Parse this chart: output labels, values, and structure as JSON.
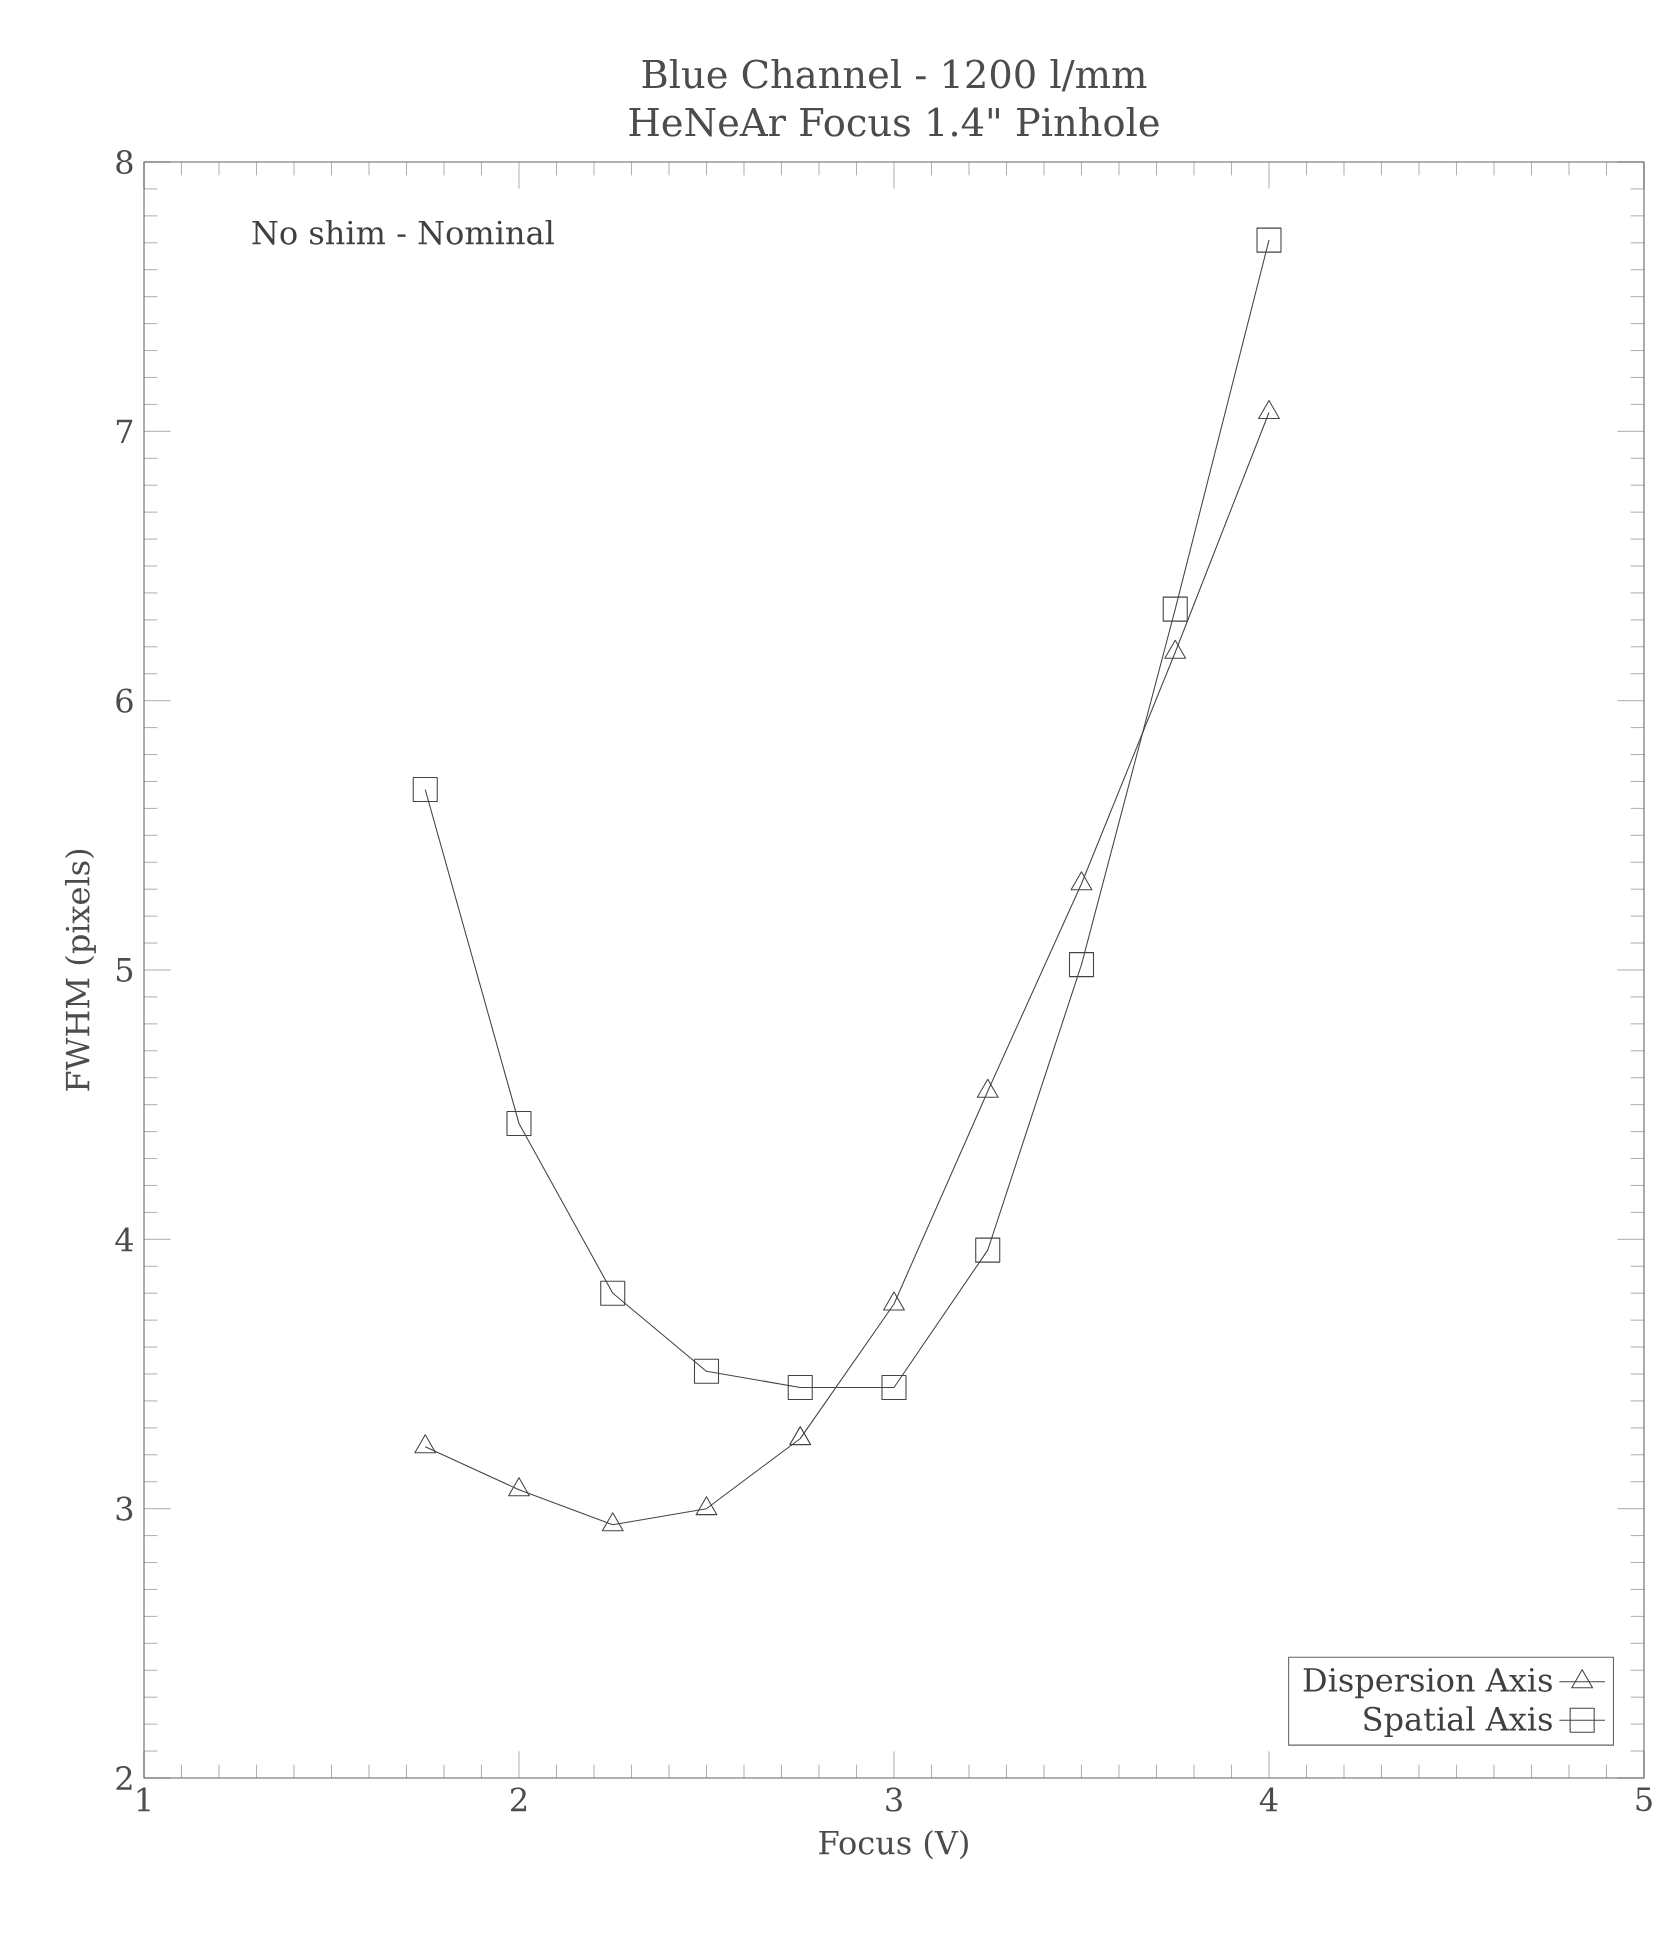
{
  "chart_data": {
    "type": "line",
    "title": "Blue Channel - 1200 l/mm",
    "subtitle": "HeNeAr Focus 1.4\" Pinhole",
    "xlabel": "Focus (V)",
    "ylabel": "FWHM (pixels)",
    "x": [
      1.75,
      2.0,
      2.25,
      2.5,
      2.75,
      3.0,
      3.25,
      3.5,
      3.75,
      4.0
    ],
    "series": [
      {
        "name": "Dispersion Axis",
        "color": "#444444",
        "marker": "triangle",
        "values": [
          3.23,
          3.07,
          2.94,
          3.0,
          3.26,
          3.76,
          4.55,
          5.32,
          6.18,
          7.07
        ]
      },
      {
        "name": "Spatial Axis",
        "color": "#444444",
        "marker": "square",
        "values": [
          5.67,
          4.43,
          3.8,
          3.51,
          3.45,
          3.45,
          3.96,
          5.02,
          6.34,
          7.71
        ]
      }
    ],
    "xlim": [
      1,
      5
    ],
    "ylim": [
      2,
      8
    ],
    "xticks": [
      1,
      2,
      3,
      4,
      5
    ],
    "yticks": [
      2,
      3,
      4,
      5,
      6,
      7,
      8
    ],
    "legend": "bottom right",
    "line_style": "solid",
    "annotations": [
      "No shim - Nominal"
    ]
  }
}
